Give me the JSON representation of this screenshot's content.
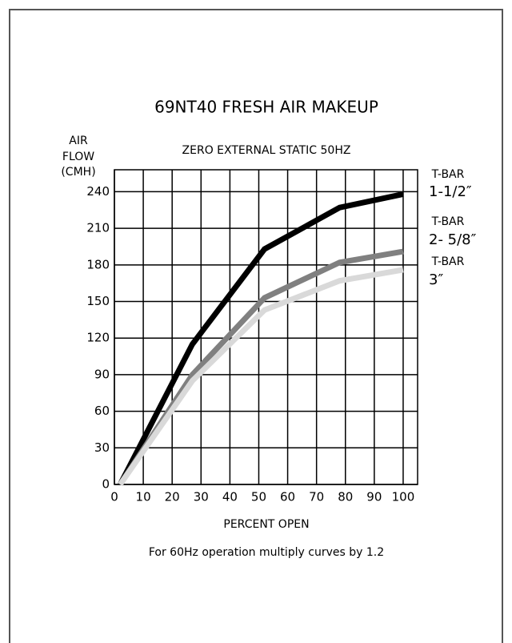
{
  "chart_data": {
    "type": "line",
    "title": "69NT40 FRESH AIR MAKEUP",
    "subtitle": "ZERO EXTERNAL STATIC 50HZ",
    "ylabel": [
      "AIR",
      "FLOW",
      "(CMH)"
    ],
    "xlabel": "PERCENT OPEN",
    "note": "For 60Hz operation multiply curves by 1.2",
    "xlim": [
      0,
      105
    ],
    "xticks": [
      0,
      10,
      20,
      30,
      40,
      50,
      60,
      70,
      80,
      90,
      100
    ],
    "ylim": [
      0,
      258
    ],
    "yticks": [
      0,
      30,
      60,
      90,
      120,
      150,
      180,
      210,
      240
    ],
    "grid": true,
    "series": [
      {
        "name": "T-BAR",
        "size": "1-1/2″",
        "color": "#000000",
        "x": [
          2,
          27,
          52,
          78,
          100
        ],
        "values": [
          0,
          115,
          193,
          227,
          238
        ]
      },
      {
        "name": "T-BAR",
        "size": "2- 5/8″",
        "color": "#808080",
        "x": [
          2,
          27,
          52,
          78,
          100
        ],
        "values": [
          0,
          90,
          153,
          182,
          191
        ]
      },
      {
        "name": "T-BAR",
        "size": "3″",
        "color": "#d9d9d9",
        "x": [
          2,
          27,
          52,
          78,
          100
        ],
        "values": [
          0,
          85,
          143,
          167,
          176
        ]
      }
    ]
  }
}
